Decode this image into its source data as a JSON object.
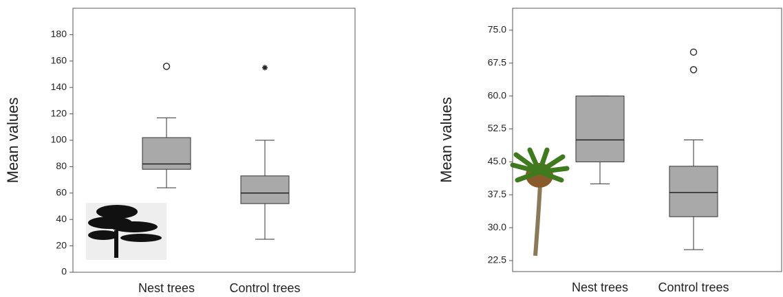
{
  "chart_data": [
    {
      "type": "box",
      "y_label": "Mean values",
      "ylim": [
        0,
        200
      ],
      "yticks": [
        0,
        20,
        40,
        60,
        80,
        100,
        120,
        140,
        160,
        180
      ],
      "categories": [
        "Nest trees",
        "Control trees"
      ],
      "boxes": [
        {
          "min": 64,
          "q1": 78,
          "median": 82,
          "q3": 102,
          "max": 117,
          "outliers": [
            156
          ]
        },
        {
          "min": 25,
          "q1": 52,
          "median": 60,
          "q3": 73,
          "max": 100,
          "extremes": [
            155
          ]
        }
      ],
      "color": "#a9a9a9"
    },
    {
      "type": "box",
      "y_label": "Mean values",
      "ylim": [
        20,
        80
      ],
      "yticks": [
        {
          "value": 22.5,
          "label": "22.5"
        },
        {
          "value": 30,
          "label": "30.0"
        },
        {
          "value": 37.5,
          "label": "37.5"
        },
        {
          "value": 45,
          "label": "45.0"
        },
        {
          "value": 52.5,
          "label": "52.5"
        },
        {
          "value": 60,
          "label": "60.0"
        },
        {
          "value": 67.5,
          "label": "67.5"
        },
        {
          "value": 75,
          "label": "75.0"
        }
      ],
      "categories": [
        "Nest trees",
        "Control trees"
      ],
      "boxes": [
        {
          "min": 40,
          "q1": 45,
          "median": 50,
          "q3": 60,
          "max": 60
        },
        {
          "min": 25,
          "q1": 32.5,
          "median": 38,
          "q3": 44,
          "max": 50,
          "outliers": [
            66,
            70
          ]
        }
      ],
      "color": "#a9a9a9"
    }
  ]
}
